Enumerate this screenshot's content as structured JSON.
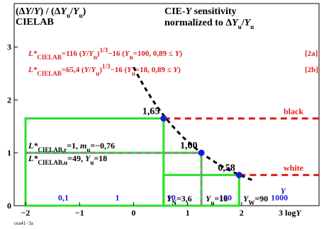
{
  "chart_data": {
    "type": "line",
    "title": [
      "CIE-Y sensitivity",
      "normalized to ΔYu/Yu"
    ],
    "ylabel_top": "(ΔY/Y) / (ΔYu/Yu)",
    "ylabel_sub": "CIELAB",
    "xlabel": "3 log Y",
    "x_range": [
      -2,
      3
    ],
    "y_range": [
      0,
      3.2
    ],
    "x_ticks": [
      "−2",
      "−1",
      "0",
      "1",
      "2"
    ],
    "y_ticks": [
      "0",
      "1",
      "2",
      "3"
    ],
    "y_top_ticks": [
      "0,1",
      "1",
      "10",
      "100",
      "1000"
    ],
    "y_top_axis_label": "Y",
    "equations": [
      {
        "lhs": "L*CIELAB=116 (Y/Yn)1/3−16",
        "cond": "(Yn=100, 0,89 ≤ Y)",
        "tag": "[2a]"
      },
      {
        "lhs": "L*CIELAB=65,4 (Y/Yu)1/3−16",
        "cond": "(Yu=18, 0,89 ≤ Y)",
        "tag": "[2b]"
      }
    ],
    "legend_lines": [
      "black",
      "white"
    ],
    "annotations": {
      "ref_r": "L*CIELAB,r=1, mu=−0,76",
      "ref_u": "L*CIELAB,u=49, Yu=18",
      "yn": "YN=3,6",
      "yu": "Yu=18",
      "yw": "YW=90"
    },
    "points": [
      {
        "x": 0.556,
        "y": 1.65,
        "label": "1,65"
      },
      {
        "x": 1.255,
        "y": 1.0,
        "label": "1,00"
      },
      {
        "x": 1.954,
        "y": 0.58,
        "label": "0,58"
      }
    ],
    "curve": {
      "x_from": 0.0,
      "x_to": 2.2,
      "ref_x": 1.255,
      "slope": -0.7667,
      "y_ref": 1.0
    },
    "black_line_y": 1.65,
    "white_line_y": 0.58,
    "green_rects": [
      {
        "x0": -2,
        "x1": 0.556,
        "y0": 0,
        "y1": 1.65
      },
      {
        "x0": -2,
        "x1": 1.255,
        "y0": 0,
        "y1": 1.0
      },
      {
        "x0": 0.556,
        "x1": 1.954,
        "y0": 0,
        "y1": 0.58
      }
    ],
    "gray_lines": {
      "y": 1.0,
      "x_to": 1.255
    },
    "colors": {
      "red": "#e01c1c",
      "green": "#26e326",
      "blue": "#1a1ad9",
      "gray": "#8c8c8c",
      "black": "#000000"
    }
  },
  "footer_id": "cea41−3a"
}
